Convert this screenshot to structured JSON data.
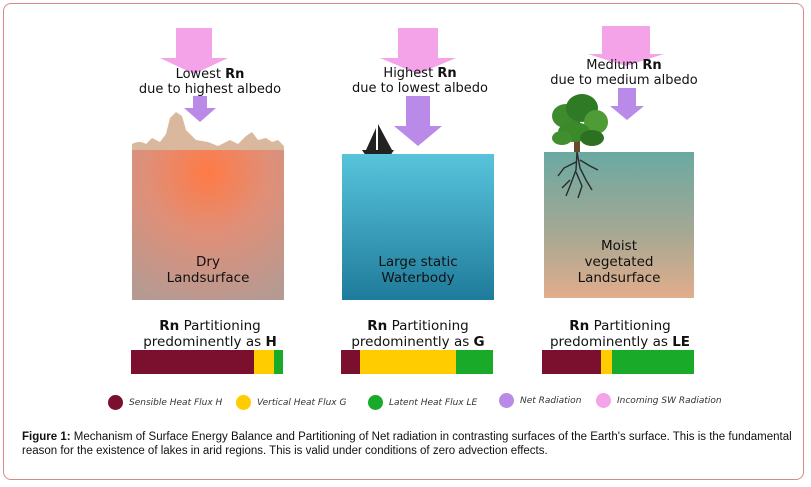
{
  "columns": [
    {
      "rn_before": "Lowest ",
      "rn": "Rn",
      "rn_line2": "due to highest albedo",
      "surface_line1": "Dry",
      "surface_line2": "Landsurface",
      "partition_rn": "Rn",
      "partition_line1_rest": " Partitioning",
      "partition_line2": "predominently as ",
      "partition_flux": "H",
      "bar": [
        0.81,
        0.13,
        0.06
      ]
    },
    {
      "rn_before": "Highest ",
      "rn": "Rn",
      "rn_line2": "due to lowest albedo",
      "surface_line1": "Large static",
      "surface_line2": "Waterbody",
      "partition_rn": "Rn",
      "partition_line1_rest": " Partitioning",
      "partition_line2": "predominently as ",
      "partition_flux": "G",
      "bar": [
        0.11,
        0.57,
        0.22
      ]
    },
    {
      "rn_before": "Medium ",
      "rn": "Rn",
      "rn_line2": "due to medium albedo",
      "surface_line1": "Moist",
      "surface_line2": "vegetated",
      "surface_line3": "Landsurface",
      "partition_rn": "Rn",
      "partition_line1_rest": " Partitioning",
      "partition_line2": "predominently as ",
      "partition_flux": "LE",
      "bar": [
        0.39,
        0.07,
        0.54
      ]
    }
  ],
  "legend": [
    {
      "label": "Sensible Heat Flux H",
      "color": "#7a0f2e"
    },
    {
      "label": "Vertical Heat Flux G",
      "color": "#ffcc00"
    },
    {
      "label": "Latent Heat Flux LE",
      "color": "#1aaa2a"
    },
    {
      "label": "Net Radiation",
      "color": "#b98ae8"
    },
    {
      "label": "Incoming SW Radiation",
      "color": "#f4a3e8"
    }
  ],
  "caption": {
    "bold": "Figure 1:",
    "text": " Mechanism of Surface Energy Balance and Partitioning of Net radiation in contrasting surfaces of the Earth's surface. This is the fundamental reason for the existence of lakes in arid regions. This is valid under conditions of zero advection effects."
  }
}
